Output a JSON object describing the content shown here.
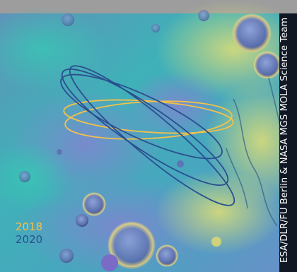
{
  "legend": {
    "items": [
      {
        "label": "2018",
        "color": "#f2c14a"
      },
      {
        "label": "2020",
        "color": "#2a4f8f"
      }
    ]
  },
  "credit": "ESA/DLR/FU Berlin & NASA MGS MOLA Science Team",
  "colors": {
    "terrain_low": "#6f8fc8",
    "terrain_mid": "#3fb6b8",
    "terrain_high": "#cfd57a",
    "frame": "#9d9d9d"
  }
}
